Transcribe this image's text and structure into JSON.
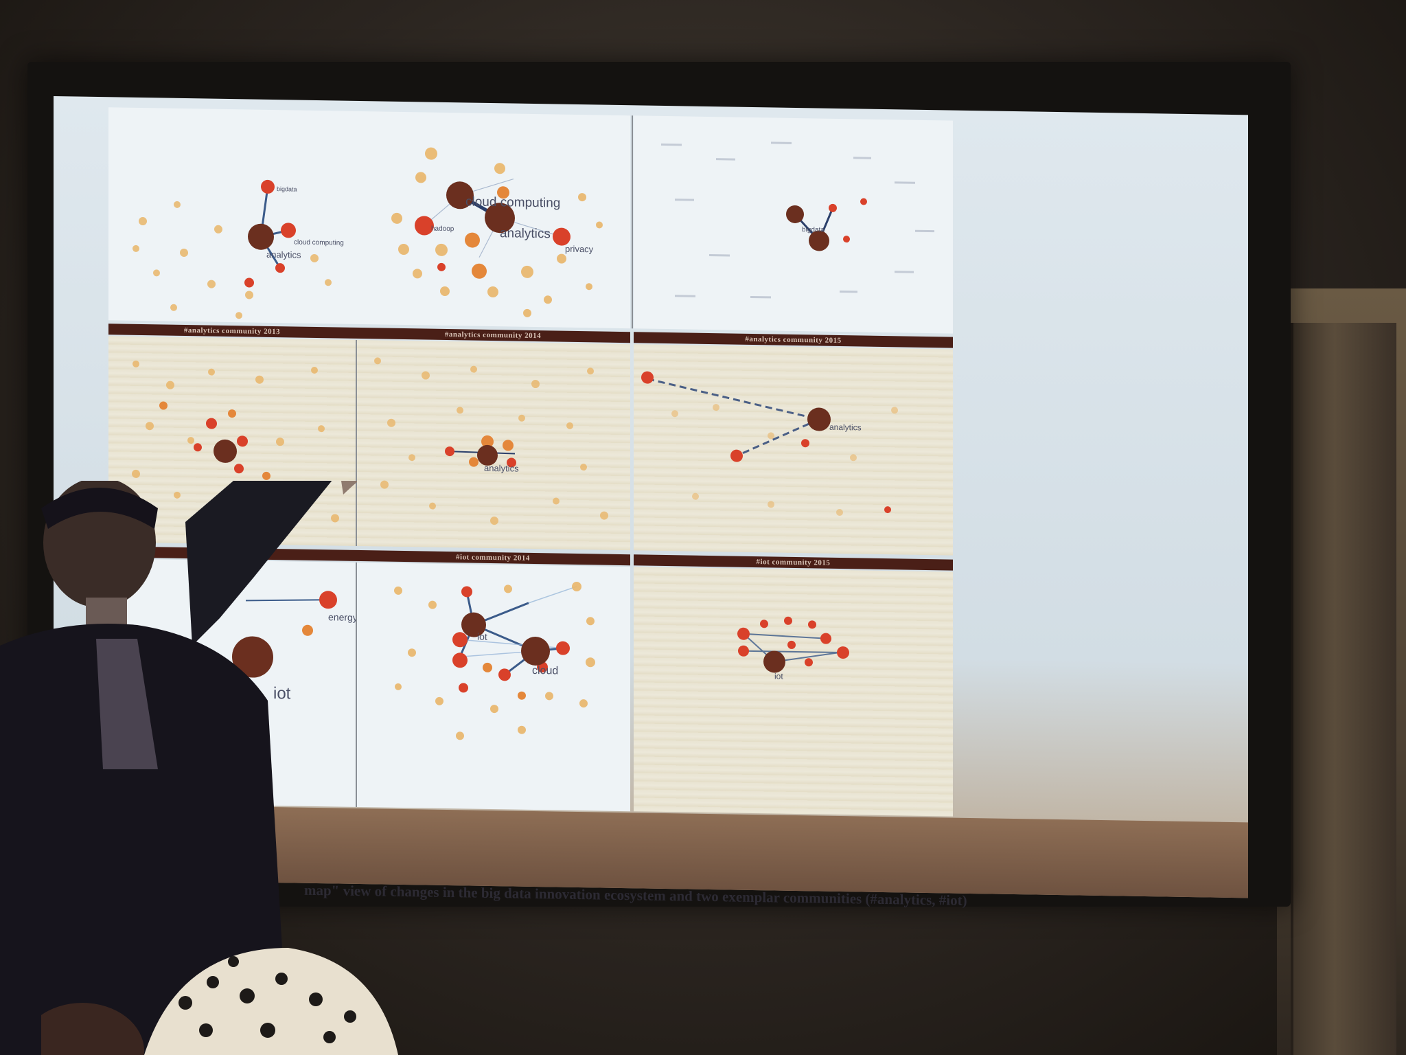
{
  "slide": {
    "panels": {
      "row1": {
        "p1_labels": [
          "analytics",
          "cloud computing",
          "bigdata"
        ],
        "p2_labels": [
          "cloud computing",
          "analytics",
          "privacy",
          "hadoop"
        ],
        "p3_labels": [
          "bigdata"
        ]
      },
      "row2": {
        "bar_2013": "#analytics community 2013",
        "bar_2014": "#analytics community 2014",
        "bar_2015": "#analytics community 2015",
        "p2_labels": [
          "analytics"
        ],
        "p3_labels": [
          "analytics"
        ]
      },
      "row3": {
        "bar_2014": "#iot community 2014",
        "bar_2015": "#iot community 2015",
        "p1_labels": [
          "energy",
          "iot"
        ],
        "p2_labels": [
          "iot",
          "cloud"
        ],
        "p3_labels": [
          "iot"
        ]
      }
    },
    "caption": "map\" view of changes in the big data innovation ecosystem and two exemplar communities (#analytics, #iot)"
  },
  "colors": {
    "screen": "#dfe8ee",
    "node_dark": "#6b2f1f",
    "node_red": "#d9412a",
    "node_orange": "#e4873a",
    "node_light": "#e9b66a",
    "edge": "#3b5b8a",
    "bar": "#4a1f17"
  }
}
